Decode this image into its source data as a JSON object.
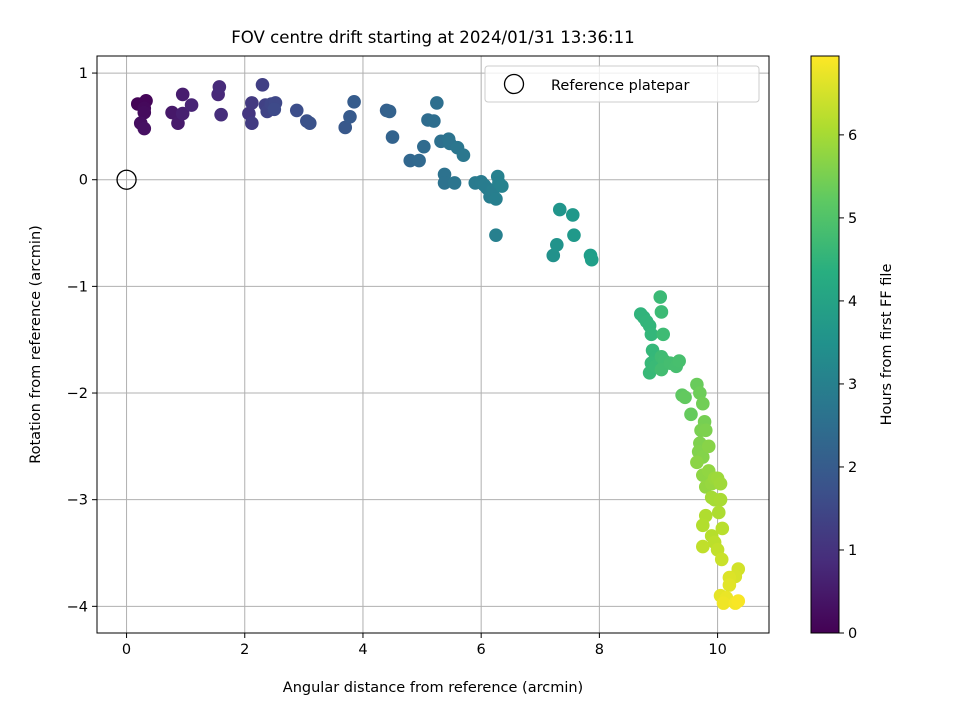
{
  "chart_data": {
    "type": "scatter",
    "title": "FOV centre drift starting at 2024/01/31 13:36:11",
    "xlabel": "Angular distance from reference (arcmin)",
    "ylabel": "Rotation from reference (arcmin)",
    "xlim": [
      -0.5,
      10.87
    ],
    "ylim": [
      -4.25,
      1.16
    ],
    "xticks": [
      0,
      2,
      4,
      6,
      8,
      10
    ],
    "yticks": [
      1,
      0,
      -1,
      -2,
      -3,
      -4
    ],
    "xtick_labels": [
      "0",
      "2",
      "4",
      "6",
      "8",
      "10"
    ],
    "ytick_labels": [
      "1",
      "0",
      "−1",
      "−2",
      "−3",
      "−4"
    ],
    "grid": true,
    "legend": {
      "placement": "top-right",
      "label": "Reference platepar"
    },
    "reference_point": {
      "x": 0,
      "y": 0
    },
    "colorbar": {
      "label": "Hours from first FF file",
      "range": [
        0,
        6.95
      ],
      "ticks": [
        0,
        1,
        2,
        3,
        4,
        5,
        6
      ],
      "tick_labels": [
        "0",
        "1",
        "2",
        "3",
        "4",
        "5",
        "6"
      ],
      "colormap": "viridis"
    },
    "points": [
      {
        "x": 0.19,
        "y": 0.71,
        "t": 0.05
      },
      {
        "x": 0.33,
        "y": 0.74,
        "t": 0.1
      },
      {
        "x": 0.3,
        "y": 0.67,
        "t": 0.15
      },
      {
        "x": 0.3,
        "y": 0.63,
        "t": 0.2
      },
      {
        "x": 0.24,
        "y": 0.53,
        "t": 0.25
      },
      {
        "x": 0.3,
        "y": 0.48,
        "t": 0.3
      },
      {
        "x": 0.77,
        "y": 0.63,
        "t": 0.45
      },
      {
        "x": 0.87,
        "y": 0.53,
        "t": 0.5
      },
      {
        "x": 0.95,
        "y": 0.8,
        "t": 0.55
      },
      {
        "x": 0.95,
        "y": 0.62,
        "t": 0.6
      },
      {
        "x": 1.1,
        "y": 0.7,
        "t": 0.7
      },
      {
        "x": 1.55,
        "y": 0.8,
        "t": 0.8
      },
      {
        "x": 1.57,
        "y": 0.87,
        "t": 0.85
      },
      {
        "x": 1.6,
        "y": 0.61,
        "t": 0.9
      },
      {
        "x": 2.07,
        "y": 0.62,
        "t": 1.1
      },
      {
        "x": 2.12,
        "y": 0.72,
        "t": 1.15
      },
      {
        "x": 2.12,
        "y": 0.53,
        "t": 1.2
      },
      {
        "x": 2.3,
        "y": 0.89,
        "t": 1.3
      },
      {
        "x": 2.35,
        "y": 0.7,
        "t": 1.35
      },
      {
        "x": 2.38,
        "y": 0.64,
        "t": 1.4
      },
      {
        "x": 2.45,
        "y": 0.71,
        "t": 1.45
      },
      {
        "x": 2.52,
        "y": 0.72,
        "t": 1.5
      },
      {
        "x": 2.5,
        "y": 0.66,
        "t": 1.55
      },
      {
        "x": 2.88,
        "y": 0.65,
        "t": 1.65
      },
      {
        "x": 3.05,
        "y": 0.55,
        "t": 1.72
      },
      {
        "x": 3.1,
        "y": 0.53,
        "t": 1.75
      },
      {
        "x": 3.7,
        "y": 0.49,
        "t": 1.9
      },
      {
        "x": 3.78,
        "y": 0.59,
        "t": 1.95
      },
      {
        "x": 3.85,
        "y": 0.73,
        "t": 2.0
      },
      {
        "x": 4.4,
        "y": 0.65,
        "t": 2.1
      },
      {
        "x": 4.45,
        "y": 0.64,
        "t": 2.15
      },
      {
        "x": 4.5,
        "y": 0.4,
        "t": 2.2
      },
      {
        "x": 4.8,
        "y": 0.18,
        "t": 2.3
      },
      {
        "x": 4.95,
        "y": 0.18,
        "t": 2.35
      },
      {
        "x": 5.03,
        "y": 0.31,
        "t": 2.4
      },
      {
        "x": 5.1,
        "y": 0.56,
        "t": 2.45
      },
      {
        "x": 5.2,
        "y": 0.55,
        "t": 2.5
      },
      {
        "x": 5.25,
        "y": 0.72,
        "t": 2.52
      },
      {
        "x": 5.32,
        "y": 0.36,
        "t": 2.55
      },
      {
        "x": 5.38,
        "y": 0.05,
        "t": 2.6
      },
      {
        "x": 5.38,
        "y": -0.03,
        "t": 2.62
      },
      {
        "x": 5.45,
        "y": 0.38,
        "t": 2.65
      },
      {
        "x": 5.47,
        "y": 0.34,
        "t": 2.68
      },
      {
        "x": 5.55,
        "y": -0.03,
        "t": 2.7
      },
      {
        "x": 5.6,
        "y": 0.3,
        "t": 2.72
      },
      {
        "x": 5.7,
        "y": 0.23,
        "t": 2.75
      },
      {
        "x": 5.9,
        "y": -0.03,
        "t": 2.85
      },
      {
        "x": 6.0,
        "y": -0.02,
        "t": 2.88
      },
      {
        "x": 6.05,
        "y": -0.05,
        "t": 2.9
      },
      {
        "x": 6.1,
        "y": -0.08,
        "t": 2.92
      },
      {
        "x": 6.15,
        "y": -0.16,
        "t": 2.95
      },
      {
        "x": 6.2,
        "y": -0.1,
        "t": 2.98
      },
      {
        "x": 6.25,
        "y": -0.18,
        "t": 3.0
      },
      {
        "x": 6.25,
        "y": -0.52,
        "t": 3.02
      },
      {
        "x": 6.28,
        "y": 0.03,
        "t": 3.05
      },
      {
        "x": 6.3,
        "y": -0.03,
        "t": 3.07
      },
      {
        "x": 6.35,
        "y": -0.06,
        "t": 3.1
      },
      {
        "x": 7.22,
        "y": -0.71,
        "t": 3.5
      },
      {
        "x": 7.28,
        "y": -0.61,
        "t": 3.55
      },
      {
        "x": 7.33,
        "y": -0.28,
        "t": 3.6
      },
      {
        "x": 7.55,
        "y": -0.33,
        "t": 3.7
      },
      {
        "x": 7.57,
        "y": -0.52,
        "t": 3.72
      },
      {
        "x": 7.85,
        "y": -0.71,
        "t": 3.85
      },
      {
        "x": 7.87,
        "y": -0.75,
        "t": 3.88
      },
      {
        "x": 8.7,
        "y": -1.26,
        "t": 4.5
      },
      {
        "x": 8.75,
        "y": -1.29,
        "t": 4.52
      },
      {
        "x": 8.8,
        "y": -1.33,
        "t": 4.55
      },
      {
        "x": 8.85,
        "y": -1.37,
        "t": 4.58
      },
      {
        "x": 8.88,
        "y": -1.45,
        "t": 4.6
      },
      {
        "x": 8.9,
        "y": -1.6,
        "t": 4.62
      },
      {
        "x": 8.95,
        "y": -1.67,
        "t": 4.64
      },
      {
        "x": 8.88,
        "y": -1.72,
        "t": 4.66
      },
      {
        "x": 8.85,
        "y": -1.81,
        "t": 4.68
      },
      {
        "x": 8.95,
        "y": -1.75,
        "t": 4.7
      },
      {
        "x": 9.03,
        "y": -1.1,
        "t": 4.72
      },
      {
        "x": 9.05,
        "y": -1.24,
        "t": 4.74
      },
      {
        "x": 9.08,
        "y": -1.45,
        "t": 4.76
      },
      {
        "x": 9.05,
        "y": -1.66,
        "t": 4.78
      },
      {
        "x": 9.1,
        "y": -1.7,
        "t": 4.8
      },
      {
        "x": 9.05,
        "y": -1.78,
        "t": 4.82
      },
      {
        "x": 9.2,
        "y": -1.72,
        "t": 4.85
      },
      {
        "x": 9.3,
        "y": -1.75,
        "t": 4.88
      },
      {
        "x": 9.35,
        "y": -1.7,
        "t": 4.9
      },
      {
        "x": 9.4,
        "y": -2.02,
        "t": 5.2
      },
      {
        "x": 9.45,
        "y": -2.04,
        "t": 5.25
      },
      {
        "x": 9.55,
        "y": -2.2,
        "t": 5.3
      },
      {
        "x": 9.65,
        "y": -1.92,
        "t": 5.35
      },
      {
        "x": 9.7,
        "y": -2.0,
        "t": 5.4
      },
      {
        "x": 9.75,
        "y": -2.1,
        "t": 5.45
      },
      {
        "x": 9.78,
        "y": -2.27,
        "t": 5.5
      },
      {
        "x": 9.72,
        "y": -2.35,
        "t": 5.55
      },
      {
        "x": 9.8,
        "y": -2.35,
        "t": 5.58
      },
      {
        "x": 9.7,
        "y": -2.47,
        "t": 5.6
      },
      {
        "x": 9.68,
        "y": -2.55,
        "t": 5.63
      },
      {
        "x": 9.75,
        "y": -2.6,
        "t": 5.66
      },
      {
        "x": 9.85,
        "y": -2.5,
        "t": 5.7
      },
      {
        "x": 9.65,
        "y": -2.65,
        "t": 5.73
      },
      {
        "x": 9.75,
        "y": -2.77,
        "t": 5.76
      },
      {
        "x": 9.85,
        "y": -2.73,
        "t": 5.8
      },
      {
        "x": 9.8,
        "y": -2.88,
        "t": 5.83
      },
      {
        "x": 9.9,
        "y": -2.85,
        "t": 5.86
      },
      {
        "x": 9.95,
        "y": -2.8,
        "t": 5.9
      },
      {
        "x": 10.0,
        "y": -2.8,
        "t": 5.93
      },
      {
        "x": 10.05,
        "y": -2.85,
        "t": 5.96
      },
      {
        "x": 9.9,
        "y": -2.98,
        "t": 6.0
      },
      {
        "x": 9.95,
        "y": -3.0,
        "t": 6.03
      },
      {
        "x": 10.05,
        "y": -3.0,
        "t": 6.06
      },
      {
        "x": 10.02,
        "y": -3.12,
        "t": 6.1
      },
      {
        "x": 9.8,
        "y": -3.15,
        "t": 6.13
      },
      {
        "x": 9.75,
        "y": -3.24,
        "t": 6.16
      },
      {
        "x": 9.9,
        "y": -3.34,
        "t": 6.2
      },
      {
        "x": 10.08,
        "y": -3.27,
        "t": 6.23
      },
      {
        "x": 9.95,
        "y": -3.4,
        "t": 6.26
      },
      {
        "x": 9.75,
        "y": -3.44,
        "t": 6.3
      },
      {
        "x": 10.0,
        "y": -3.47,
        "t": 6.33
      },
      {
        "x": 10.07,
        "y": -3.56,
        "t": 6.4
      },
      {
        "x": 10.35,
        "y": -3.65,
        "t": 6.5
      },
      {
        "x": 10.3,
        "y": -3.72,
        "t": 6.55
      },
      {
        "x": 10.2,
        "y": -3.73,
        "t": 6.6
      },
      {
        "x": 10.2,
        "y": -3.8,
        "t": 6.65
      },
      {
        "x": 10.05,
        "y": -3.9,
        "t": 6.7
      },
      {
        "x": 10.15,
        "y": -3.92,
        "t": 6.75
      },
      {
        "x": 10.1,
        "y": -3.97,
        "t": 6.8
      },
      {
        "x": 10.3,
        "y": -3.97,
        "t": 6.85
      },
      {
        "x": 10.35,
        "y": -3.95,
        "t": 6.9
      }
    ]
  }
}
